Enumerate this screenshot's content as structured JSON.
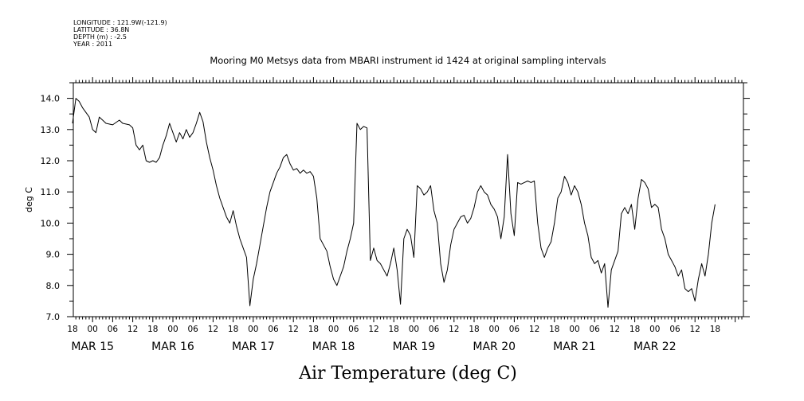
{
  "meta_lines": [
    "LONGITUDE : 121.9W(-121.9)",
    "LATITUDE : 36.8N",
    "DEPTH (m) : -2.5",
    "YEAR : 2011"
  ],
  "chart_data": {
    "type": "line",
    "title": "Mooring M0 Metsys data from MBARI instrument id 1424 at original sampling intervals",
    "xlabel": "Air Temperature (deg C)",
    "ylabel": "deg C",
    "ylim": [
      7.0,
      14.5
    ],
    "yticks": [
      "7.0",
      "8.0",
      "9.0",
      "10.0",
      "11.0",
      "12.0",
      "13.0",
      "14.0"
    ],
    "x_unit": "hours since MAR 14 18:00",
    "xlim": [
      0,
      204
    ],
    "hour_ticks": [
      "18",
      "00",
      "06",
      "12",
      "18",
      "00",
      "06",
      "12",
      "18",
      "00",
      "06",
      "12",
      "18",
      "00",
      "06",
      "12",
      "18",
      "00",
      "06",
      "12",
      "18",
      "00",
      "06",
      "12",
      "18",
      "00",
      "06",
      "12",
      "18",
      "00",
      "06",
      "12",
      "18"
    ],
    "day_labels": [
      "MAR 15",
      "MAR 16",
      "MAR 17",
      "MAR 18",
      "MAR 19",
      "MAR 20",
      "MAR 21",
      "MAR 22"
    ],
    "series": [
      {
        "color": "#000000",
        "points": [
          [
            0,
            13.2
          ],
          [
            1,
            14.0
          ],
          [
            2,
            13.9
          ],
          [
            3,
            13.7
          ],
          [
            5,
            13.4
          ],
          [
            6,
            13.0
          ],
          [
            7,
            12.9
          ],
          [
            8,
            13.4
          ],
          [
            9,
            13.3
          ],
          [
            10,
            13.2
          ],
          [
            12,
            13.15
          ],
          [
            14,
            13.3
          ],
          [
            15,
            13.2
          ],
          [
            17,
            13.15
          ],
          [
            18,
            13.05
          ],
          [
            19,
            12.5
          ],
          [
            20,
            12.35
          ],
          [
            21,
            12.5
          ],
          [
            22,
            12.0
          ],
          [
            23,
            11.95
          ],
          [
            24,
            12.0
          ],
          [
            25,
            11.95
          ],
          [
            26,
            12.1
          ],
          [
            27,
            12.5
          ],
          [
            28,
            12.8
          ],
          [
            29,
            13.2
          ],
          [
            30,
            12.9
          ],
          [
            31,
            12.6
          ],
          [
            32,
            12.9
          ],
          [
            33,
            12.7
          ],
          [
            34,
            13.0
          ],
          [
            35,
            12.75
          ],
          [
            36,
            12.9
          ],
          [
            37,
            13.2
          ],
          [
            38,
            13.55
          ],
          [
            39,
            13.25
          ],
          [
            40,
            12.6
          ],
          [
            41,
            12.1
          ],
          [
            42,
            11.7
          ],
          [
            43,
            11.2
          ],
          [
            44,
            10.8
          ],
          [
            45,
            10.5
          ],
          [
            46,
            10.2
          ],
          [
            47,
            10.0
          ],
          [
            48,
            10.4
          ],
          [
            49,
            9.9
          ],
          [
            50,
            9.5
          ],
          [
            51,
            9.2
          ],
          [
            52,
            8.9
          ],
          [
            53,
            7.35
          ],
          [
            54,
            8.2
          ],
          [
            55,
            8.7
          ],
          [
            56,
            9.3
          ],
          [
            57,
            9.9
          ],
          [
            58,
            10.5
          ],
          [
            59,
            11.0
          ],
          [
            60,
            11.3
          ],
          [
            61,
            11.6
          ],
          [
            62,
            11.8
          ],
          [
            63,
            12.1
          ],
          [
            64,
            12.2
          ],
          [
            65,
            11.9
          ],
          [
            66,
            11.7
          ],
          [
            67,
            11.75
          ],
          [
            68,
            11.6
          ],
          [
            69,
            11.7
          ],
          [
            70,
            11.6
          ],
          [
            71,
            11.65
          ],
          [
            72,
            11.5
          ],
          [
            73,
            10.8
          ],
          [
            74,
            9.5
          ],
          [
            75,
            9.3
          ],
          [
            76,
            9.1
          ],
          [
            77,
            8.6
          ],
          [
            78,
            8.2
          ],
          [
            79,
            8.0
          ],
          [
            80,
            8.3
          ],
          [
            81,
            8.6
          ],
          [
            82,
            9.1
          ],
          [
            83,
            9.5
          ],
          [
            84,
            10.0
          ],
          [
            85,
            13.2
          ],
          [
            86,
            13.0
          ],
          [
            87,
            13.1
          ],
          [
            88,
            13.05
          ],
          [
            89,
            8.8
          ],
          [
            90,
            9.2
          ],
          [
            91,
            8.8
          ],
          [
            92,
            8.7
          ],
          [
            93,
            8.5
          ],
          [
            94,
            8.3
          ],
          [
            95,
            8.7
          ],
          [
            96,
            9.2
          ],
          [
            97,
            8.5
          ],
          [
            98,
            7.4
          ],
          [
            99,
            9.5
          ],
          [
            100,
            9.8
          ],
          [
            101,
            9.6
          ],
          [
            102,
            8.9
          ],
          [
            103,
            11.2
          ],
          [
            104,
            11.1
          ],
          [
            105,
            10.9
          ],
          [
            106,
            11.0
          ],
          [
            107,
            11.2
          ],
          [
            108,
            10.4
          ],
          [
            109,
            10.0
          ],
          [
            110,
            8.7
          ],
          [
            111,
            8.1
          ],
          [
            112,
            8.5
          ],
          [
            113,
            9.3
          ],
          [
            114,
            9.8
          ],
          [
            115,
            10.0
          ],
          [
            116,
            10.2
          ],
          [
            117,
            10.25
          ],
          [
            118,
            10.0
          ],
          [
            119,
            10.15
          ],
          [
            120,
            10.5
          ],
          [
            121,
            11.0
          ],
          [
            122,
            11.2
          ],
          [
            123,
            11.0
          ],
          [
            124,
            10.9
          ],
          [
            125,
            10.6
          ],
          [
            126,
            10.45
          ],
          [
            127,
            10.2
          ],
          [
            128,
            9.5
          ],
          [
            129,
            10.2
          ],
          [
            130,
            12.2
          ],
          [
            131,
            10.3
          ],
          [
            132,
            9.6
          ],
          [
            133,
            11.3
          ],
          [
            134,
            11.25
          ],
          [
            135,
            11.3
          ],
          [
            136,
            11.35
          ],
          [
            137,
            11.3
          ],
          [
            138,
            11.35
          ],
          [
            139,
            10.0
          ],
          [
            140,
            9.2
          ],
          [
            141,
            8.9
          ],
          [
            142,
            9.2
          ],
          [
            143,
            9.4
          ],
          [
            144,
            10.0
          ],
          [
            145,
            10.8
          ],
          [
            146,
            11.0
          ],
          [
            147,
            11.5
          ],
          [
            148,
            11.3
          ],
          [
            149,
            10.9
          ],
          [
            150,
            11.2
          ],
          [
            151,
            11.0
          ],
          [
            152,
            10.6
          ],
          [
            153,
            10.0
          ],
          [
            154,
            9.6
          ],
          [
            155,
            8.9
          ],
          [
            156,
            8.7
          ],
          [
            157,
            8.8
          ],
          [
            158,
            8.4
          ],
          [
            159,
            8.7
          ],
          [
            160,
            7.3
          ],
          [
            161,
            8.5
          ],
          [
            162,
            8.8
          ],
          [
            163,
            9.1
          ],
          [
            164,
            10.3
          ],
          [
            165,
            10.5
          ],
          [
            166,
            10.3
          ],
          [
            167,
            10.6
          ],
          [
            168,
            9.8
          ],
          [
            169,
            10.8
          ],
          [
            170,
            11.4
          ],
          [
            171,
            11.3
          ],
          [
            172,
            11.1
          ],
          [
            173,
            10.5
          ],
          [
            174,
            10.6
          ],
          [
            175,
            10.5
          ],
          [
            176,
            9.8
          ],
          [
            177,
            9.5
          ],
          [
            178,
            9.0
          ],
          [
            179,
            8.8
          ],
          [
            180,
            8.6
          ],
          [
            181,
            8.3
          ],
          [
            182,
            8.5
          ],
          [
            183,
            7.9
          ],
          [
            184,
            7.8
          ],
          [
            185,
            7.9
          ],
          [
            186,
            7.5
          ],
          [
            187,
            8.2
          ],
          [
            188,
            8.7
          ],
          [
            189,
            8.3
          ],
          [
            190,
            9.0
          ],
          [
            191,
            10.0
          ],
          [
            192,
            10.6
          ]
        ]
      }
    ]
  }
}
